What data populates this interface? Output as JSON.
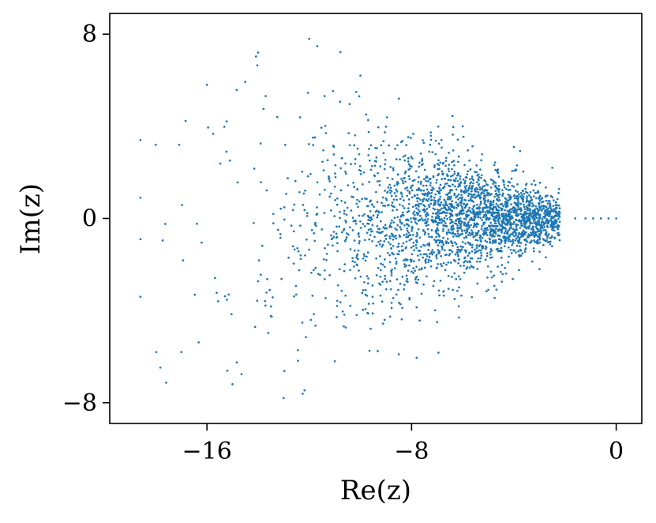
{
  "chart_data": {
    "type": "scatter",
    "title": "",
    "xlabel": "Re(z)",
    "ylabel": "Im(z)",
    "xlim": [
      -19.8,
      1.0
    ],
    "ylim": [
      -8.9,
      8.9
    ],
    "xticks": [
      {
        "value": -16,
        "label": "−16"
      },
      {
        "value": -8,
        "label": "−8"
      },
      {
        "value": 0,
        "label": "0"
      }
    ],
    "yticks": [
      {
        "value": 8,
        "label": "8"
      },
      {
        "value": 0,
        "label": "0"
      },
      {
        "value": -8,
        "label": "−8"
      }
    ],
    "grid": false,
    "legend": "none",
    "point_color": "#1f77b4",
    "sample_points": {
      "note_x_sign": "",
      "x": [
        0.0,
        -0.3,
        -0.6,
        -0.9,
        -1.2,
        -1.6,
        -2.5,
        -3.0,
        -4.0,
        -5.0,
        -6.0,
        -7.0,
        -8.5,
        -10.0,
        -11.0,
        -12.0,
        -13.0,
        -14.0,
        -15.0,
        -16.0,
        -17.0,
        -18.0,
        -18.6,
        -18.6,
        -18.6,
        -18.6
      ],
      "y": [
        0.0,
        0.0,
        0.0,
        0.0,
        0.0,
        0.0,
        2.2,
        -2.2,
        3.1,
        -3.1,
        4.0,
        -4.5,
        5.2,
        6.2,
        -6.2,
        7.8,
        -7.8,
        7.2,
        -7.2,
        5.8,
        -5.8,
        3.2,
        3.4,
        -3.4,
        0.9,
        -0.9
      ]
    }
  }
}
